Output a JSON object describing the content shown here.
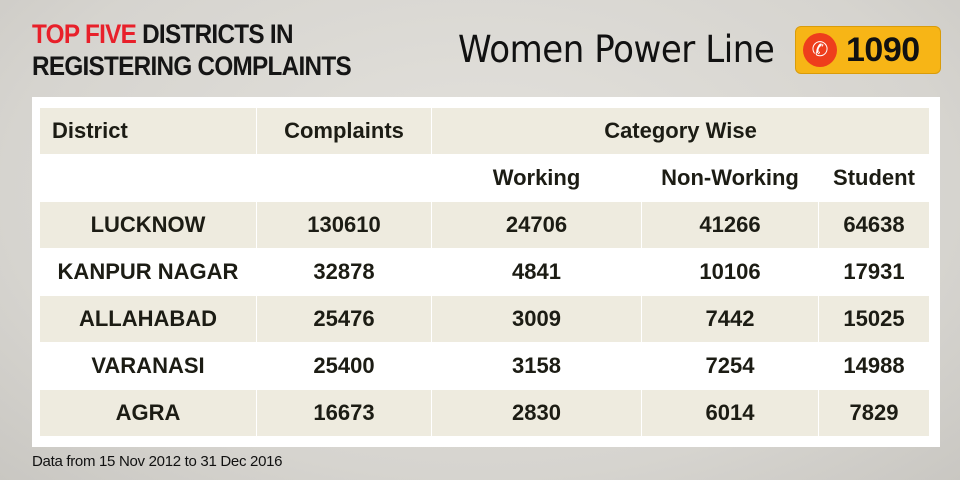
{
  "header": {
    "title_highlight": "TOP FIVE",
    "title_rest_line1": " DISTRICTS IN",
    "title_line2": "REGISTERING COMPLAINTS",
    "helpline_name": "Women Power Line",
    "helpline_icon": "phone-icon",
    "helpline_number": "1090"
  },
  "colors": {
    "highlight": "#e8202a",
    "badge": "#f7b516",
    "phone_circle": "#ee3e1c",
    "row_beige": "#eeebdf"
  },
  "chart_data": {
    "type": "table",
    "headers": {
      "district": "District",
      "complaints": "Complaints",
      "category": "Category Wise"
    },
    "subheaders": [
      "Working",
      "Non-Working",
      "Student"
    ],
    "rows": [
      {
        "district": "LUCKNOW",
        "complaints": "130610",
        "working": "24706",
        "non_working": "41266",
        "student": "64638"
      },
      {
        "district": "KANPUR NAGAR",
        "complaints": "32878",
        "working": "4841",
        "non_working": "10106",
        "student": "17931"
      },
      {
        "district": "ALLAHABAD",
        "complaints": "25476",
        "working": "3009",
        "non_working": "7442",
        "student": "15025"
      },
      {
        "district": "VARANASI",
        "complaints": "25400",
        "working": "3158",
        "non_working": "7254",
        "student": "14988"
      },
      {
        "district": "AGRA",
        "complaints": "16673",
        "working": "2830",
        "non_working": "6014",
        "student": "7829"
      }
    ]
  },
  "footer": {
    "note": "Data from 15 Nov 2012 to 31 Dec 2016"
  }
}
